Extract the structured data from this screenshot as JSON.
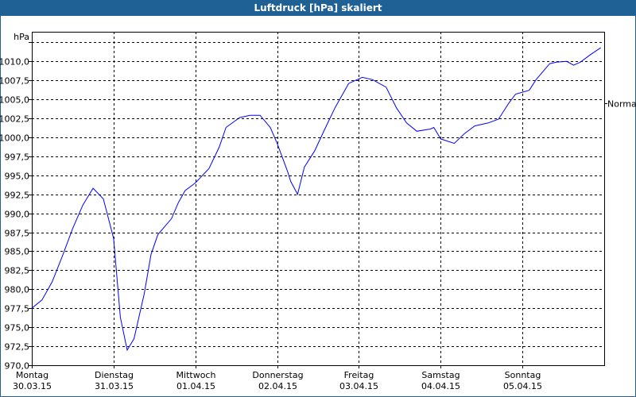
{
  "window": {
    "title": "Luftdruck [hPa] skaliert"
  },
  "chart_data": {
    "type": "line",
    "title": "Luftdruck [hPa] skaliert",
    "ylabel": "hPa",
    "ylim": [
      970.0,
      1013.9
    ],
    "yticks": [
      970.0,
      972.5,
      975.0,
      977.5,
      980.0,
      982.5,
      985.0,
      987.5,
      990.0,
      992.5,
      995.0,
      997.5,
      1000.0,
      1002.5,
      1005.0,
      1007.5,
      1010.0,
      1012.5
    ],
    "ytick_labels": [
      "970,0",
      "972,5",
      "975,0",
      "977,5",
      "980,0",
      "982,5",
      "985,0",
      "987,5",
      "990,0",
      "992,5",
      "995,0",
      "997,5",
      "1000,0",
      "1002,5",
      "1005,0",
      "1007,5",
      "1010,0",
      ""
    ],
    "xlim": [
      "2015-03-30 00:00",
      "2015-04-06 00:00"
    ],
    "xticks": [
      {
        "day": "Montag",
        "date": "30.03.15",
        "x": "2015-03-30 00:00"
      },
      {
        "day": "Dienstag",
        "date": "31.03.15",
        "x": "2015-03-31 00:00"
      },
      {
        "day": "Mittwoch",
        "date": "01.04.15",
        "x": "2015-04-01 00:00"
      },
      {
        "day": "Donnerstag",
        "date": "02.04.15",
        "x": "2015-04-02 00:00"
      },
      {
        "day": "Freitag",
        "date": "03.04.15",
        "x": "2015-04-03 00:00"
      },
      {
        "day": "Samstag",
        "date": "04.04.15",
        "x": "2015-04-04 00:00"
      },
      {
        "day": "Sonntag",
        "date": "05.04.15",
        "x": "2015-04-05 00:00"
      }
    ],
    "grid": true,
    "normal_label": "Normal",
    "normal_value": 1004.5,
    "line_color": "#0000ff",
    "x": [
      "2015-03-30 00:00",
      "2015-03-30 03:00",
      "2015-03-30 06:00",
      "2015-03-30 09:00",
      "2015-03-30 12:00",
      "2015-03-30 15:00",
      "2015-03-30 18:00",
      "2015-03-30 21:00",
      "2015-03-31 00:00",
      "2015-03-31 02:00",
      "2015-03-31 04:00",
      "2015-03-31 06:00",
      "2015-03-31 09:00",
      "2015-03-31 11:00",
      "2015-03-31 13:00",
      "2015-03-31 17:00",
      "2015-03-31 19:00",
      "2015-03-31 21:00",
      "2015-04-01 00:00",
      "2015-04-01 04:00",
      "2015-04-01 07:00",
      "2015-04-01 09:00",
      "2015-04-01 13:00",
      "2015-04-01 16:00",
      "2015-04-01 19:00",
      "2015-04-01 22:00",
      "2015-04-02 00:00",
      "2015-04-02 03:00",
      "2015-04-02 04:00",
      "2015-04-02 06:00",
      "2015-04-02 08:00",
      "2015-04-02 11:00",
      "2015-04-02 14:00",
      "2015-04-02 17:00",
      "2015-04-02 21:00",
      "2015-04-03 01:00",
      "2015-04-03 04:00",
      "2015-04-03 08:00",
      "2015-04-03 11:00",
      "2015-04-03 14:00",
      "2015-04-03 17:00",
      "2015-04-03 21:00",
      "2015-04-03 22:00",
      "2015-04-04 00:00",
      "2015-04-04 04:00",
      "2015-04-04 07:00",
      "2015-04-04 10:00",
      "2015-04-04 14:00",
      "2015-04-04 17:00",
      "2015-04-04 20:00",
      "2015-04-04 22:00",
      "2015-04-05 02:00",
      "2015-04-05 04:00",
      "2015-04-05 08:00",
      "2015-04-05 10:00",
      "2015-04-05 13:00",
      "2015-04-05 15:00",
      "2015-04-05 17:00",
      "2015-04-05 20:00",
      "2015-04-05 23:00"
    ],
    "values": [
      977.5,
      978.6,
      981.0,
      984.4,
      988.0,
      991.1,
      993.3,
      991.9,
      986.7,
      976.3,
      972.0,
      973.5,
      979.4,
      984.6,
      987.2,
      989.3,
      991.4,
      993.0,
      994.0,
      995.9,
      998.7,
      1001.3,
      1002.6,
      1002.9,
      1002.9,
      1001.3,
      999.2,
      995.6,
      994.2,
      992.5,
      996.1,
      998.2,
      1001.1,
      1003.9,
      1007.1,
      1007.9,
      1007.6,
      1006.6,
      1003.9,
      1001.9,
      1000.8,
      1001.1,
      1001.3,
      999.8,
      999.2,
      1000.5,
      1001.5,
      1001.9,
      1002.4,
      1004.5,
      1005.7,
      1006.2,
      1007.6,
      1009.7,
      1009.9,
      1010.0,
      1009.5,
      1009.9,
      1010.9,
      1011.8
    ]
  }
}
